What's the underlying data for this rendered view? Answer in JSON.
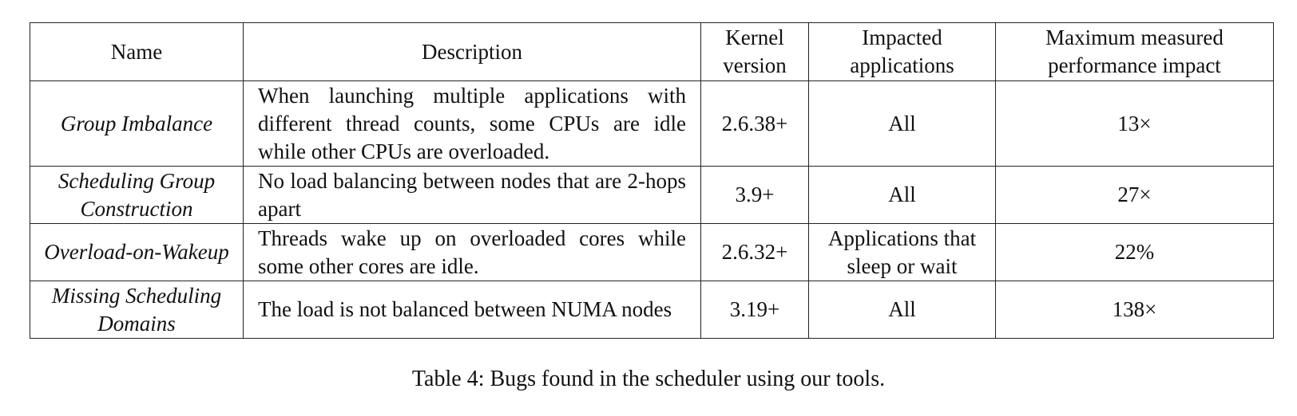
{
  "table": {
    "headers": {
      "name": "Name",
      "description": "Description",
      "kernel": "Kernel version",
      "impacted": "Impacted applications",
      "impact": "Maximum measured performance impact"
    },
    "rows": [
      {
        "name": "Group Imbalance",
        "description": "When launching multiple applications with different thread counts, some CPUs are idle while other CPUs are overloaded.",
        "kernel": "2.6.38+",
        "impacted": "All",
        "impact": "13×"
      },
      {
        "name": "Scheduling Group Construction",
        "description": "No load balancing between nodes that are 2-hops apart",
        "kernel": "3.9+",
        "impacted": "All",
        "impact": "27×"
      },
      {
        "name": "Overload-on-Wakeup",
        "description": "Threads wake up on overloaded cores while some other cores are idle.",
        "kernel": "2.6.32+",
        "impacted": "Applications that sleep or wait",
        "impact": "22%"
      },
      {
        "name": "Missing Scheduling Domains",
        "description": "The load is not balanced between NUMA nodes",
        "kernel": "3.19+",
        "impacted": "All",
        "impact": "138×"
      }
    ]
  },
  "caption": "Table 4: Bugs found in the scheduler using our tools."
}
